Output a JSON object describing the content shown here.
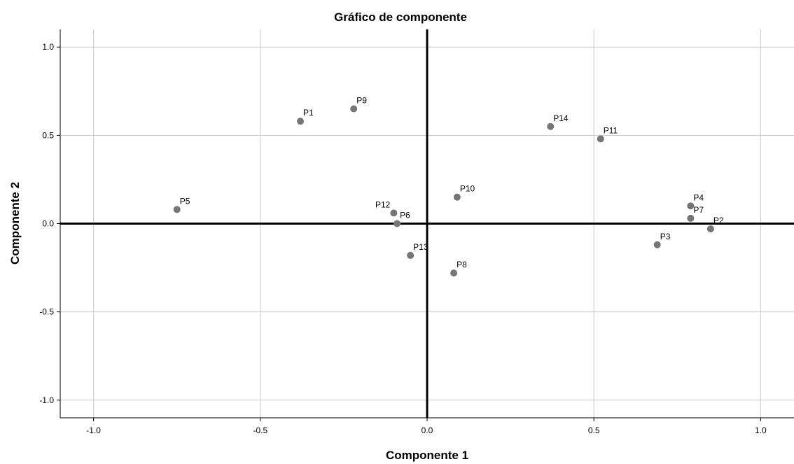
{
  "chart_data": {
    "type": "scatter",
    "title": "Gráfico de componente",
    "xlabel": "Componente 1",
    "ylabel": "Componente 2",
    "xlim": [
      -1.1,
      1.1
    ],
    "ylim": [
      -1.1,
      1.1
    ],
    "xticks": [
      -1.0,
      -0.5,
      0.0,
      0.5,
      1.0
    ],
    "yticks": [
      -1.0,
      -0.5,
      0.0,
      0.5,
      1.0
    ],
    "xtick_labels": [
      "-1.0",
      "-0.5",
      "0.0",
      "0.5",
      "1.0"
    ],
    "ytick_labels": [
      "-1.0",
      "-0.5",
      "0.0",
      "0.5",
      "1.0"
    ],
    "grid": true,
    "point_color": "#767676",
    "points": [
      {
        "label": "P1",
        "x": -0.38,
        "y": 0.58
      },
      {
        "label": "P2",
        "x": 0.85,
        "y": -0.03
      },
      {
        "label": "P3",
        "x": 0.69,
        "y": -0.12
      },
      {
        "label": "P4",
        "x": 0.79,
        "y": 0.1
      },
      {
        "label": "P5",
        "x": -0.75,
        "y": 0.08
      },
      {
        "label": "P6",
        "x": -0.09,
        "y": 0.0
      },
      {
        "label": "P7",
        "x": 0.79,
        "y": 0.03
      },
      {
        "label": "P8",
        "x": 0.08,
        "y": -0.28
      },
      {
        "label": "P9",
        "x": -0.22,
        "y": 0.65
      },
      {
        "label": "P10",
        "x": 0.09,
        "y": 0.15
      },
      {
        "label": "P11",
        "x": 0.52,
        "y": 0.48
      },
      {
        "label": "P12",
        "x": -0.1,
        "y": 0.06
      },
      {
        "label": "P13",
        "x": -0.05,
        "y": -0.18
      },
      {
        "label": "P14",
        "x": 0.37,
        "y": 0.55
      }
    ]
  }
}
